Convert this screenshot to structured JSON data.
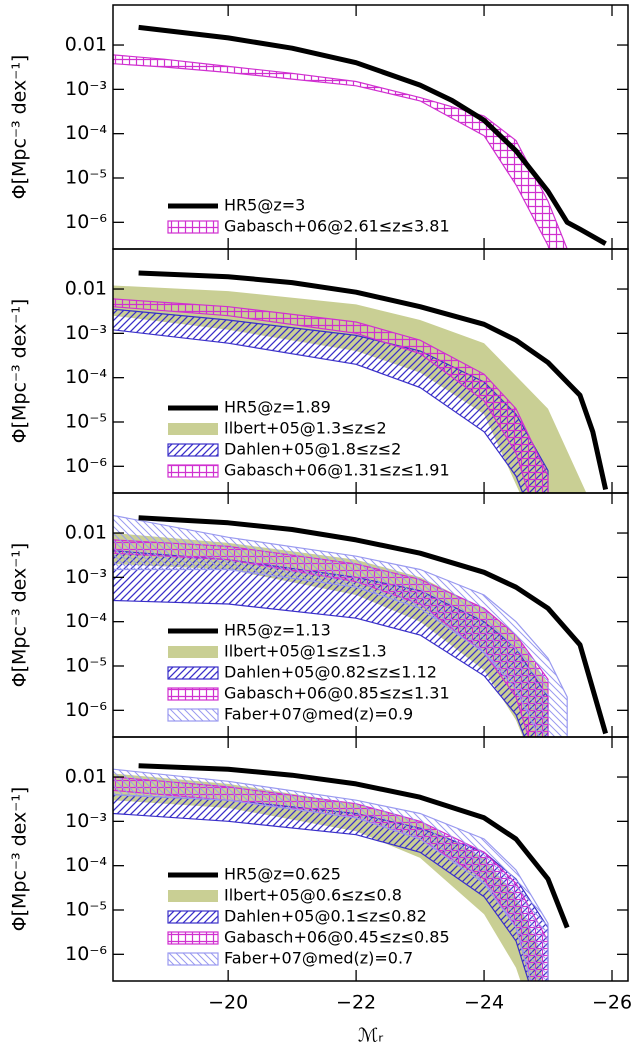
{
  "chart_data": [
    {
      "type": "line",
      "log_y": true,
      "legend": "lower left",
      "ylabel": "Φ[Mpc⁻³ dex⁻¹]",
      "xlim": [
        -18.2,
        -26.25
      ],
      "ylim": [
        2.5e-07,
        0.08
      ],
      "xticks": [
        -20,
        -22,
        -24,
        -26
      ],
      "yticks": [
        0.01,
        {
          "value": 0.001,
          "label": "10⁻³"
        },
        {
          "value": 0.0001,
          "label": "10⁻⁴"
        },
        {
          "value": 1e-05,
          "label": "10⁻⁵"
        },
        {
          "value": 1e-06,
          "label": "10⁻⁶"
        }
      ],
      "series": [
        {
          "name": "HR5@z=3",
          "color": "#000000",
          "x": [
            -18.6,
            -20,
            -21,
            -22,
            -23,
            -23.5,
            -24,
            -24.5,
            -25,
            -25.3,
            -25.5,
            -25.9
          ],
          "values": [
            0.025,
            0.0145,
            0.0085,
            0.004,
            0.00125,
            0.00056,
            0.0002,
            4.1e-05,
            5e-06,
            1e-06,
            7e-07,
            3.3e-07
          ]
        }
      ],
      "bands": [
        {
          "name": "Gabasch+06@2.61≤z≤3.81",
          "color": "#d030d0",
          "fill": "grid",
          "x": [
            -18.2,
            -19,
            -20,
            -21,
            -22,
            -23,
            -24,
            -24.5,
            -25,
            -25.3
          ],
          "upper": [
            0.006,
            0.0048,
            0.0033,
            0.0023,
            0.0015,
            0.00065,
            0.00025,
            7e-05,
            3e-06,
            2.5e-07
          ],
          "lower": [
            0.0038,
            0.0032,
            0.0024,
            0.0017,
            0.0012,
            0.00055,
            9e-05,
            7e-06,
            3e-07,
            1e-08
          ]
        }
      ]
    },
    {
      "type": "line",
      "log_y": true,
      "legend": "lower left",
      "ylabel": "Φ[Mpc⁻³ dex⁻¹]",
      "xlim": [
        -18.2,
        -26.25
      ],
      "ylim": [
        2.5e-07,
        0.08
      ],
      "xticks": [
        -20,
        -22,
        -24,
        -26
      ],
      "yticks": [
        0.01,
        {
          "value": 0.001,
          "label": "10⁻³"
        },
        {
          "value": 0.0001,
          "label": "10⁻⁴"
        },
        {
          "value": 1e-05,
          "label": "10⁻⁵"
        },
        {
          "value": 1e-06,
          "label": "10⁻⁶"
        }
      ],
      "series": [
        {
          "name": "HR5@z=1.89",
          "color": "#000000",
          "x": [
            -18.6,
            -20,
            -21,
            -22,
            -23,
            -24,
            -24.5,
            -25,
            -25.5,
            -25.7,
            -25.9
          ],
          "values": [
            0.023,
            0.019,
            0.014,
            0.0085,
            0.004,
            0.0016,
            0.0007,
            0.00022,
            4e-05,
            6e-06,
            3e-07
          ]
        }
      ],
      "bands": [
        {
          "name": "Ilbert+05@1.3≤z≤2",
          "color": "#c9cf94",
          "fill": "solid",
          "x": [
            -18.2,
            -20,
            -22,
            -23,
            -24,
            -25,
            -25.6
          ],
          "upper": [
            0.012,
            0.009,
            0.0045,
            0.002,
            0.0006,
            2e-05,
            2.5e-07
          ],
          "lower": [
            0.0025,
            0.0012,
            0.0004,
            0.00013,
            1.5e-05,
            1e-08,
            1e-09
          ]
        },
        {
          "name": "Dahlen+05@1.8≤z≤2",
          "color": "#3a2fc9",
          "fill": "forward",
          "x": [
            -18.2,
            -20,
            -22,
            -23,
            -24,
            -24.5,
            -25
          ],
          "upper": [
            0.0035,
            0.002,
            0.0009,
            0.0004,
            8e-05,
            1.5e-05,
            8e-07
          ],
          "lower": [
            0.0012,
            0.0006,
            0.0002,
            6e-05,
            6e-06,
            6e-07,
            1e-08
          ]
        },
        {
          "name": "Gabasch+06@1.31≤z≤1.91",
          "color": "#d030d0",
          "fill": "grid",
          "x": [
            -18.2,
            -20,
            -22,
            -23,
            -24,
            -24.5,
            -25
          ],
          "upper": [
            0.006,
            0.004,
            0.0018,
            0.0007,
            0.00012,
            2e-05,
            6e-07
          ],
          "lower": [
            0.004,
            0.0025,
            0.001,
            0.00035,
            3e-05,
            2e-06,
            1e-08
          ]
        }
      ]
    },
    {
      "type": "line",
      "log_y": true,
      "legend": "lower left",
      "ylabel": "Φ[Mpc⁻³ dex⁻¹]",
      "xlim": [
        -18.2,
        -26.25
      ],
      "ylim": [
        2.5e-07,
        0.08
      ],
      "xticks": [
        -20,
        -22,
        -24,
        -26
      ],
      "yticks": [
        0.01,
        {
          "value": 0.001,
          "label": "10⁻³"
        },
        {
          "value": 0.0001,
          "label": "10⁻⁴"
        },
        {
          "value": 1e-05,
          "label": "10⁻⁵"
        },
        {
          "value": 1e-06,
          "label": "10⁻⁶"
        }
      ],
      "series": [
        {
          "name": "HR5@z=1.13",
          "color": "#000000",
          "x": [
            -18.6,
            -20,
            -21,
            -22,
            -23,
            -24,
            -24.5,
            -25,
            -25.5,
            -25.9
          ],
          "values": [
            0.022,
            0.017,
            0.012,
            0.007,
            0.0035,
            0.0013,
            0.0006,
            0.0002,
            3e-05,
            3e-07
          ]
        }
      ],
      "bands": [
        {
          "name": "Ilbert+05@1≤z≤1.3",
          "color": "#c9cf94",
          "fill": "solid",
          "x": [
            -18.2,
            -20,
            -22,
            -23,
            -24,
            -24.5,
            -25
          ],
          "upper": [
            0.01,
            0.006,
            0.0025,
            0.001,
            0.0002,
            5e-05,
            4e-06
          ],
          "lower": [
            0.002,
            0.0015,
            0.0004,
            0.0001,
            8e-06,
            6e-07,
            1e-08
          ]
        },
        {
          "name": "Dahlen+05@0.82≤z≤1.12",
          "color": "#3a2fc9",
          "fill": "forward",
          "x": [
            -18.2,
            -20,
            -22,
            -23,
            -24,
            -24.5,
            -25
          ],
          "upper": [
            0.004,
            0.0025,
            0.001,
            0.0005,
            0.0001,
            2.5e-05,
            2e-06
          ],
          "lower": [
            0.0003,
            0.00025,
            0.00012,
            5e-05,
            6e-06,
            8e-07,
            1e-08
          ]
        },
        {
          "name": "Gabasch+06@0.85≤z≤1.31",
          "color": "#d030d0",
          "fill": "grid",
          "x": [
            -18.2,
            -20,
            -22,
            -23,
            -24,
            -24.5,
            -25
          ],
          "upper": [
            0.007,
            0.005,
            0.002,
            0.0009,
            0.0002,
            5e-05,
            5e-06
          ],
          "lower": [
            0.0035,
            0.0025,
            0.0008,
            0.00025,
            2e-05,
            2e-06,
            1e-08
          ]
        },
        {
          "name": "Faber+07@med(z)=0.9",
          "color": "#9a9af0",
          "fill": "backward",
          "x": [
            -18.2,
            -20,
            -22,
            -23,
            -24,
            -24.5,
            -25,
            -25.3
          ],
          "upper": [
            0.025,
            0.008,
            0.003,
            0.0015,
            0.0004,
            0.0001,
            1.5e-05,
            2e-06
          ],
          "lower": [
            0.0015,
            0.0015,
            0.0006,
            0.0002,
            2e-05,
            3e-06,
            1e-07,
            1e-08
          ]
        }
      ]
    },
    {
      "type": "line",
      "log_y": true,
      "legend": "lower left",
      "ylabel": "Φ[Mpc⁻³ dex⁻¹]",
      "xlabel": "ℳᵣ",
      "xlim": [
        -18.2,
        -26.25
      ],
      "ylim": [
        2.5e-07,
        0.08
      ],
      "xticks": [
        {
          "value": -20,
          "label": "−20"
        },
        {
          "value": -22,
          "label": "−22"
        },
        {
          "value": -24,
          "label": "−24"
        },
        {
          "value": -26,
          "label": "−26"
        }
      ],
      "yticks": [
        0.01,
        {
          "value": 0.001,
          "label": "10⁻³"
        },
        {
          "value": 0.0001,
          "label": "10⁻⁴"
        },
        {
          "value": 1e-05,
          "label": "10⁻⁵"
        },
        {
          "value": 1e-06,
          "label": "10⁻⁶"
        }
      ],
      "series": [
        {
          "name": "HR5@z=0.625",
          "color": "#000000",
          "x": [
            -18.6,
            -20,
            -21,
            -22,
            -23,
            -24,
            -24.5,
            -25,
            -25.3
          ],
          "values": [
            0.018,
            0.015,
            0.011,
            0.007,
            0.0035,
            0.0012,
            0.0004,
            5e-05,
            4e-06
          ]
        }
      ],
      "bands": [
        {
          "name": "Ilbert+05@0.6≤z≤0.8",
          "color": "#c9cf94",
          "fill": "solid",
          "x": [
            -18.2,
            -20,
            -22,
            -23,
            -24,
            -24.5,
            -24.9
          ],
          "upper": [
            0.012,
            0.007,
            0.0025,
            0.001,
            0.00015,
            2e-05,
            1e-06
          ],
          "lower": [
            0.003,
            0.002,
            0.0006,
            0.00015,
            8e-06,
            5e-07,
            1e-08
          ]
        },
        {
          "name": "Dahlen+05@0.1≤z≤0.82",
          "color": "#3a2fc9",
          "fill": "forward",
          "x": [
            -18.2,
            -20,
            -22,
            -23,
            -24,
            -24.5,
            -25
          ],
          "upper": [
            0.004,
            0.003,
            0.0015,
            0.0007,
            0.0002,
            5e-05,
            4e-06
          ],
          "lower": [
            0.0015,
            0.001,
            0.0005,
            0.0002,
            2e-05,
            2e-06,
            1e-08
          ]
        },
        {
          "name": "Gabasch+06@0.45≤z≤0.85",
          "color": "#d030d0",
          "fill": "grid",
          "x": [
            -18.2,
            -20,
            -22,
            -23,
            -24,
            -24.5,
            -25
          ],
          "upper": [
            0.01,
            0.006,
            0.0025,
            0.001,
            0.0002,
            4e-05,
            2e-06
          ],
          "lower": [
            0.005,
            0.003,
            0.0012,
            0.0004,
            5e-05,
            4e-06,
            1e-08
          ]
        },
        {
          "name": "Faber+07@med(z)=0.7",
          "color": "#9a9af0",
          "fill": "backward",
          "x": [
            -18.2,
            -20,
            -22,
            -23,
            -24,
            -24.5,
            -25
          ],
          "upper": [
            0.015,
            0.008,
            0.003,
            0.0015,
            0.0004,
            8e-05,
            5e-06
          ],
          "lower": [
            0.004,
            0.003,
            0.0012,
            0.0004,
            4e-05,
            4e-06,
            1e-08
          ]
        }
      ]
    }
  ]
}
